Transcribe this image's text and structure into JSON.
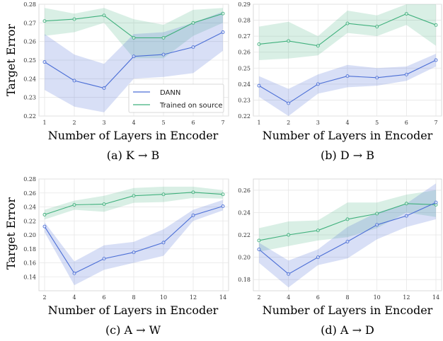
{
  "colors": {
    "dann": "#4c6fd6",
    "source": "#3fb07c",
    "grid": "#e6e6e6",
    "frame": "#cfcfcf"
  },
  "legend": {
    "dann": "DANN",
    "source": "Trained on source"
  },
  "chart_data": [
    {
      "type": "line",
      "caption": "(a) K → B",
      "xlabel": "Number of Layers in Encoder",
      "ylabel": "Target Error",
      "x": [
        1,
        2,
        3,
        4,
        5,
        6,
        7
      ],
      "xticks": [
        "1",
        "2",
        "3",
        "4",
        "5",
        "6",
        "7"
      ],
      "ylim": [
        0.22,
        0.28
      ],
      "yticks": [
        "0.22",
        "0.23",
        "0.24",
        "0.25",
        "0.26",
        "0.27",
        "0.28"
      ],
      "legend_position": "lower-right",
      "grid": true,
      "series": [
        {
          "name": "DANN",
          "values": [
            0.249,
            0.239,
            0.235,
            0.252,
            0.253,
            0.257,
            0.265
          ],
          "lower": [
            0.234,
            0.225,
            0.222,
            0.24,
            0.241,
            0.243,
            0.255
          ],
          "upper": [
            0.264,
            0.253,
            0.248,
            0.264,
            0.265,
            0.27,
            0.276
          ]
        },
        {
          "name": "Trained on source",
          "values": [
            0.271,
            0.272,
            0.274,
            0.262,
            0.262,
            0.27,
            0.275
          ],
          "lower": [
            0.263,
            0.265,
            0.27,
            0.251,
            0.251,
            0.263,
            0.27
          ],
          "upper": [
            0.278,
            0.275,
            0.278,
            0.272,
            0.269,
            0.277,
            0.278
          ]
        }
      ]
    },
    {
      "type": "line",
      "caption": "(b) D → B",
      "xlabel": "Number of Layers in Encoder",
      "ylabel": "",
      "x": [
        1,
        2,
        3,
        4,
        5,
        6,
        7
      ],
      "xticks": [
        "1",
        "2",
        "3",
        "4",
        "5",
        "6",
        "7"
      ],
      "ylim": [
        0.22,
        0.29
      ],
      "yticks": [
        "0.22",
        "0.23",
        "0.24",
        "0.25",
        "0.26",
        "0.27",
        "0.28",
        "0.29"
      ],
      "grid": true,
      "series": [
        {
          "name": "DANN",
          "values": [
            0.239,
            0.228,
            0.24,
            0.245,
            0.244,
            0.246,
            0.255
          ],
          "lower": [
            0.232,
            0.22,
            0.234,
            0.238,
            0.239,
            0.242,
            0.251
          ],
          "upper": [
            0.245,
            0.237,
            0.246,
            0.252,
            0.25,
            0.251,
            0.259
          ]
        },
        {
          "name": "Trained on source",
          "values": [
            0.265,
            0.267,
            0.264,
            0.278,
            0.276,
            0.284,
            0.277
          ],
          "lower": [
            0.255,
            0.256,
            0.258,
            0.272,
            0.27,
            0.277,
            0.264
          ],
          "upper": [
            0.276,
            0.279,
            0.27,
            0.286,
            0.283,
            0.29,
            0.29
          ]
        }
      ]
    },
    {
      "type": "line",
      "caption": "(c) A → W",
      "xlabel": "Number of Layers in Encoder",
      "ylabel": "Target Error",
      "x": [
        2,
        4,
        6,
        8,
        10,
        12,
        14
      ],
      "xticks": [
        "2",
        "4",
        "6",
        "8",
        "10",
        "12",
        "14"
      ],
      "ylim": [
        0.12,
        0.28
      ],
      "yticks": [
        "0.14",
        "0.16",
        "0.18",
        "0.20",
        "0.22",
        "0.24",
        "0.26",
        "0.28"
      ],
      "grid": true,
      "series": [
        {
          "name": "DANN",
          "values": [
            0.212,
            0.145,
            0.166,
            0.175,
            0.189,
            0.228,
            0.241
          ],
          "lower": [
            0.204,
            0.128,
            0.15,
            0.16,
            0.17,
            0.22,
            0.235
          ],
          "upper": [
            0.218,
            0.162,
            0.185,
            0.19,
            0.208,
            0.236,
            0.25
          ]
        },
        {
          "name": "Trained on source",
          "values": [
            0.229,
            0.243,
            0.244,
            0.256,
            0.258,
            0.261,
            0.258
          ],
          "lower": [
            0.222,
            0.236,
            0.233,
            0.246,
            0.247,
            0.253,
            0.252
          ],
          "upper": [
            0.236,
            0.249,
            0.256,
            0.267,
            0.269,
            0.269,
            0.264
          ]
        }
      ]
    },
    {
      "type": "line",
      "caption": "(d) A → D",
      "xlabel": "Number of Layers in Encoder",
      "ylabel": "",
      "x": [
        2,
        4,
        6,
        8,
        10,
        12,
        14
      ],
      "xticks": [
        "2",
        "4",
        "6",
        "8",
        "10",
        "12",
        "14"
      ],
      "ylim": [
        0.17,
        0.27
      ],
      "yticks": [
        "0.18",
        "0.20",
        "0.22",
        "0.24",
        "0.26"
      ],
      "grid": true,
      "series": [
        {
          "name": "DANN",
          "values": [
            0.207,
            0.185,
            0.2,
            0.214,
            0.229,
            0.237,
            0.249
          ],
          "lower": [
            0.195,
            0.173,
            0.193,
            0.199,
            0.216,
            0.227,
            0.234
          ],
          "upper": [
            0.213,
            0.197,
            0.207,
            0.227,
            0.24,
            0.248,
            0.266
          ]
        },
        {
          "name": "Trained on source",
          "values": [
            0.215,
            0.22,
            0.224,
            0.234,
            0.239,
            0.248,
            0.247
          ],
          "lower": [
            0.205,
            0.21,
            0.215,
            0.218,
            0.226,
            0.24,
            0.236
          ],
          "upper": [
            0.226,
            0.232,
            0.233,
            0.249,
            0.249,
            0.256,
            0.26
          ]
        }
      ]
    }
  ]
}
